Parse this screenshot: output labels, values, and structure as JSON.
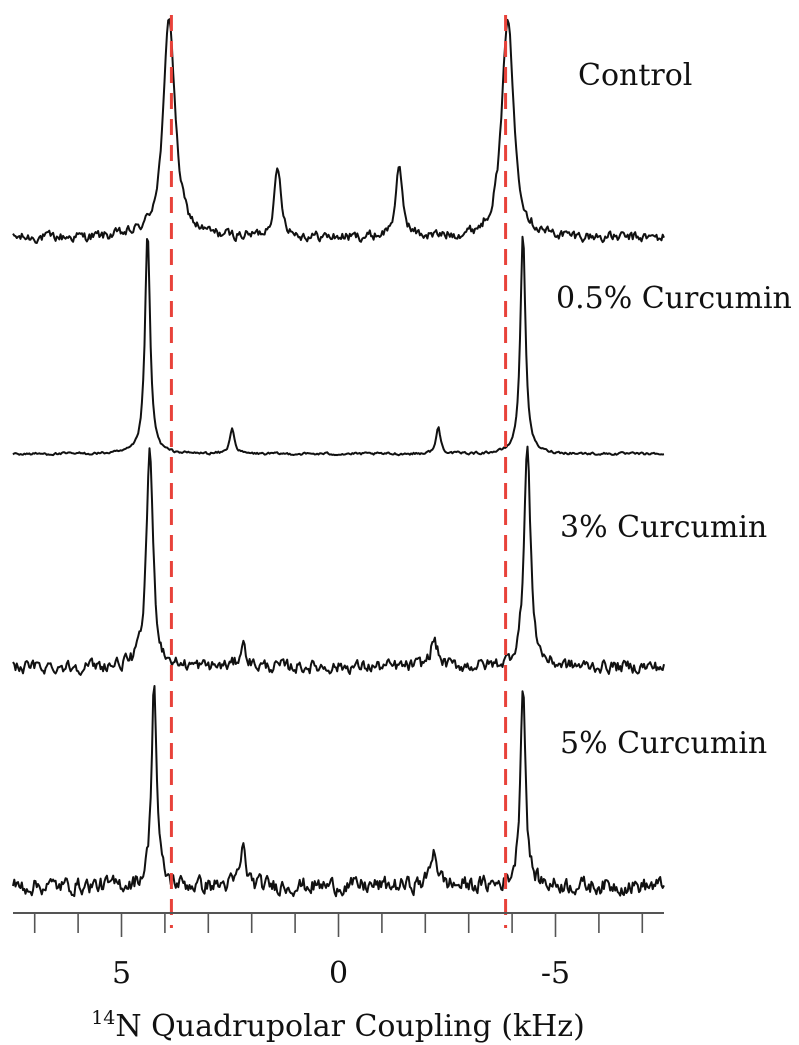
{
  "chart_data": {
    "type": "line",
    "xlabel_sup": "14",
    "xlabel": "N Quadrupolar Coupling (kHz)",
    "xlim": [
      7.5,
      -7.5
    ],
    "x_major_ticks": [
      5,
      0,
      -5
    ],
    "x_tick_labels": [
      "5",
      "0",
      "-5"
    ],
    "x_minor_step": 1,
    "grid": false,
    "reference_lines": {
      "x": [
        3.85,
        -3.85
      ],
      "color": "#e8423a",
      "style": "dashed"
    },
    "line_color": "#111111",
    "series": [
      {
        "name": "Control",
        "peaks": [
          {
            "x": 3.9,
            "height": 1.0,
            "width": 0.16
          },
          {
            "x": 1.4,
            "height": 0.3,
            "width": 0.1
          },
          {
            "x": -1.4,
            "height": 0.3,
            "width": 0.1
          },
          {
            "x": -3.9,
            "height": 1.0,
            "width": 0.16
          }
        ],
        "noise": 0.02
      },
      {
        "name": "0.5% Curcumin",
        "peaks": [
          {
            "x": 4.4,
            "height": 1.0,
            "width": 0.07
          },
          {
            "x": 2.45,
            "height": 0.12,
            "width": 0.06
          },
          {
            "x": -2.3,
            "height": 0.12,
            "width": 0.06
          },
          {
            "x": -4.25,
            "height": 1.0,
            "width": 0.07
          }
        ],
        "noise": 0.005
      },
      {
        "name": "3% Curcumin",
        "peaks": [
          {
            "x": 4.35,
            "height": 1.0,
            "width": 0.09
          },
          {
            "x": 2.2,
            "height": 0.1,
            "width": 0.09
          },
          {
            "x": -2.2,
            "height": 0.12,
            "width": 0.1
          },
          {
            "x": -4.35,
            "height": 1.0,
            "width": 0.09
          }
        ],
        "noise": 0.025
      },
      {
        "name": "5% Curcumin",
        "peaks": [
          {
            "x": 4.25,
            "height": 1.0,
            "width": 0.07
          },
          {
            "x": 2.2,
            "height": 0.18,
            "width": 0.08
          },
          {
            "x": -2.2,
            "height": 0.18,
            "width": 0.09
          },
          {
            "x": -4.25,
            "height": 1.0,
            "width": 0.07
          }
        ],
        "noise": 0.035
      }
    ]
  }
}
